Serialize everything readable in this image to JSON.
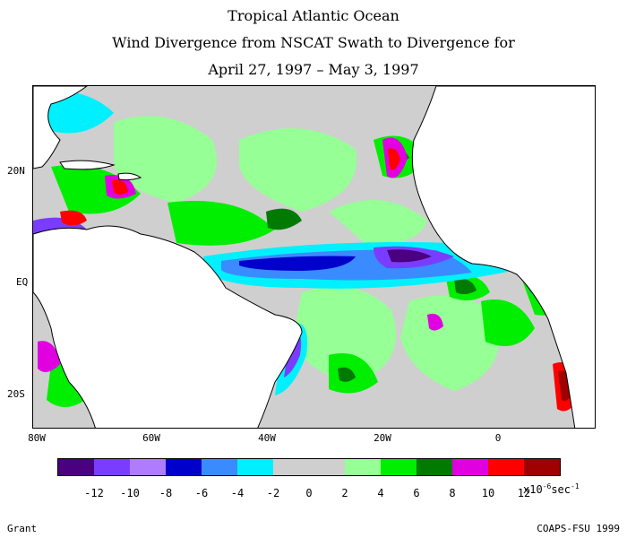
{
  "titles": {
    "line1": "Tropical Atlantic Ocean",
    "line2": "Wind Divergence from NSCAT Swath to Divergence for",
    "line3": "April 27, 1997 – May 3, 1997"
  },
  "map": {
    "lat_labels": [
      "20N",
      "EQ",
      "20S"
    ],
    "lon_labels": [
      "80W",
      "60W",
      "40W",
      "20W",
      "0"
    ],
    "land_color": "#ffffff",
    "neutral_color": "#cfcfcf"
  },
  "colorbar": {
    "colors": [
      "#4b0082",
      "#7a3dff",
      "#b07cff",
      "#0000cd",
      "#3a8bff",
      "#00f0ff",
      "#cfcfcf",
      "#cfcfcf",
      "#96ff96",
      "#00ee00",
      "#007a00",
      "#e000e0",
      "#ff0000",
      "#a00000"
    ],
    "labels": [
      "-12",
      "-10",
      "-8",
      "-6",
      "-4",
      "-2",
      "0",
      "2",
      "4",
      "6",
      "8",
      "10",
      "12"
    ],
    "unit_text": "x10",
    "unit_exp": "-6",
    "unit_suffix": "sec",
    "unit_suffix_exp": "-1"
  },
  "footer": {
    "left": "Grant",
    "right": "COAPS-FSU 1999"
  }
}
